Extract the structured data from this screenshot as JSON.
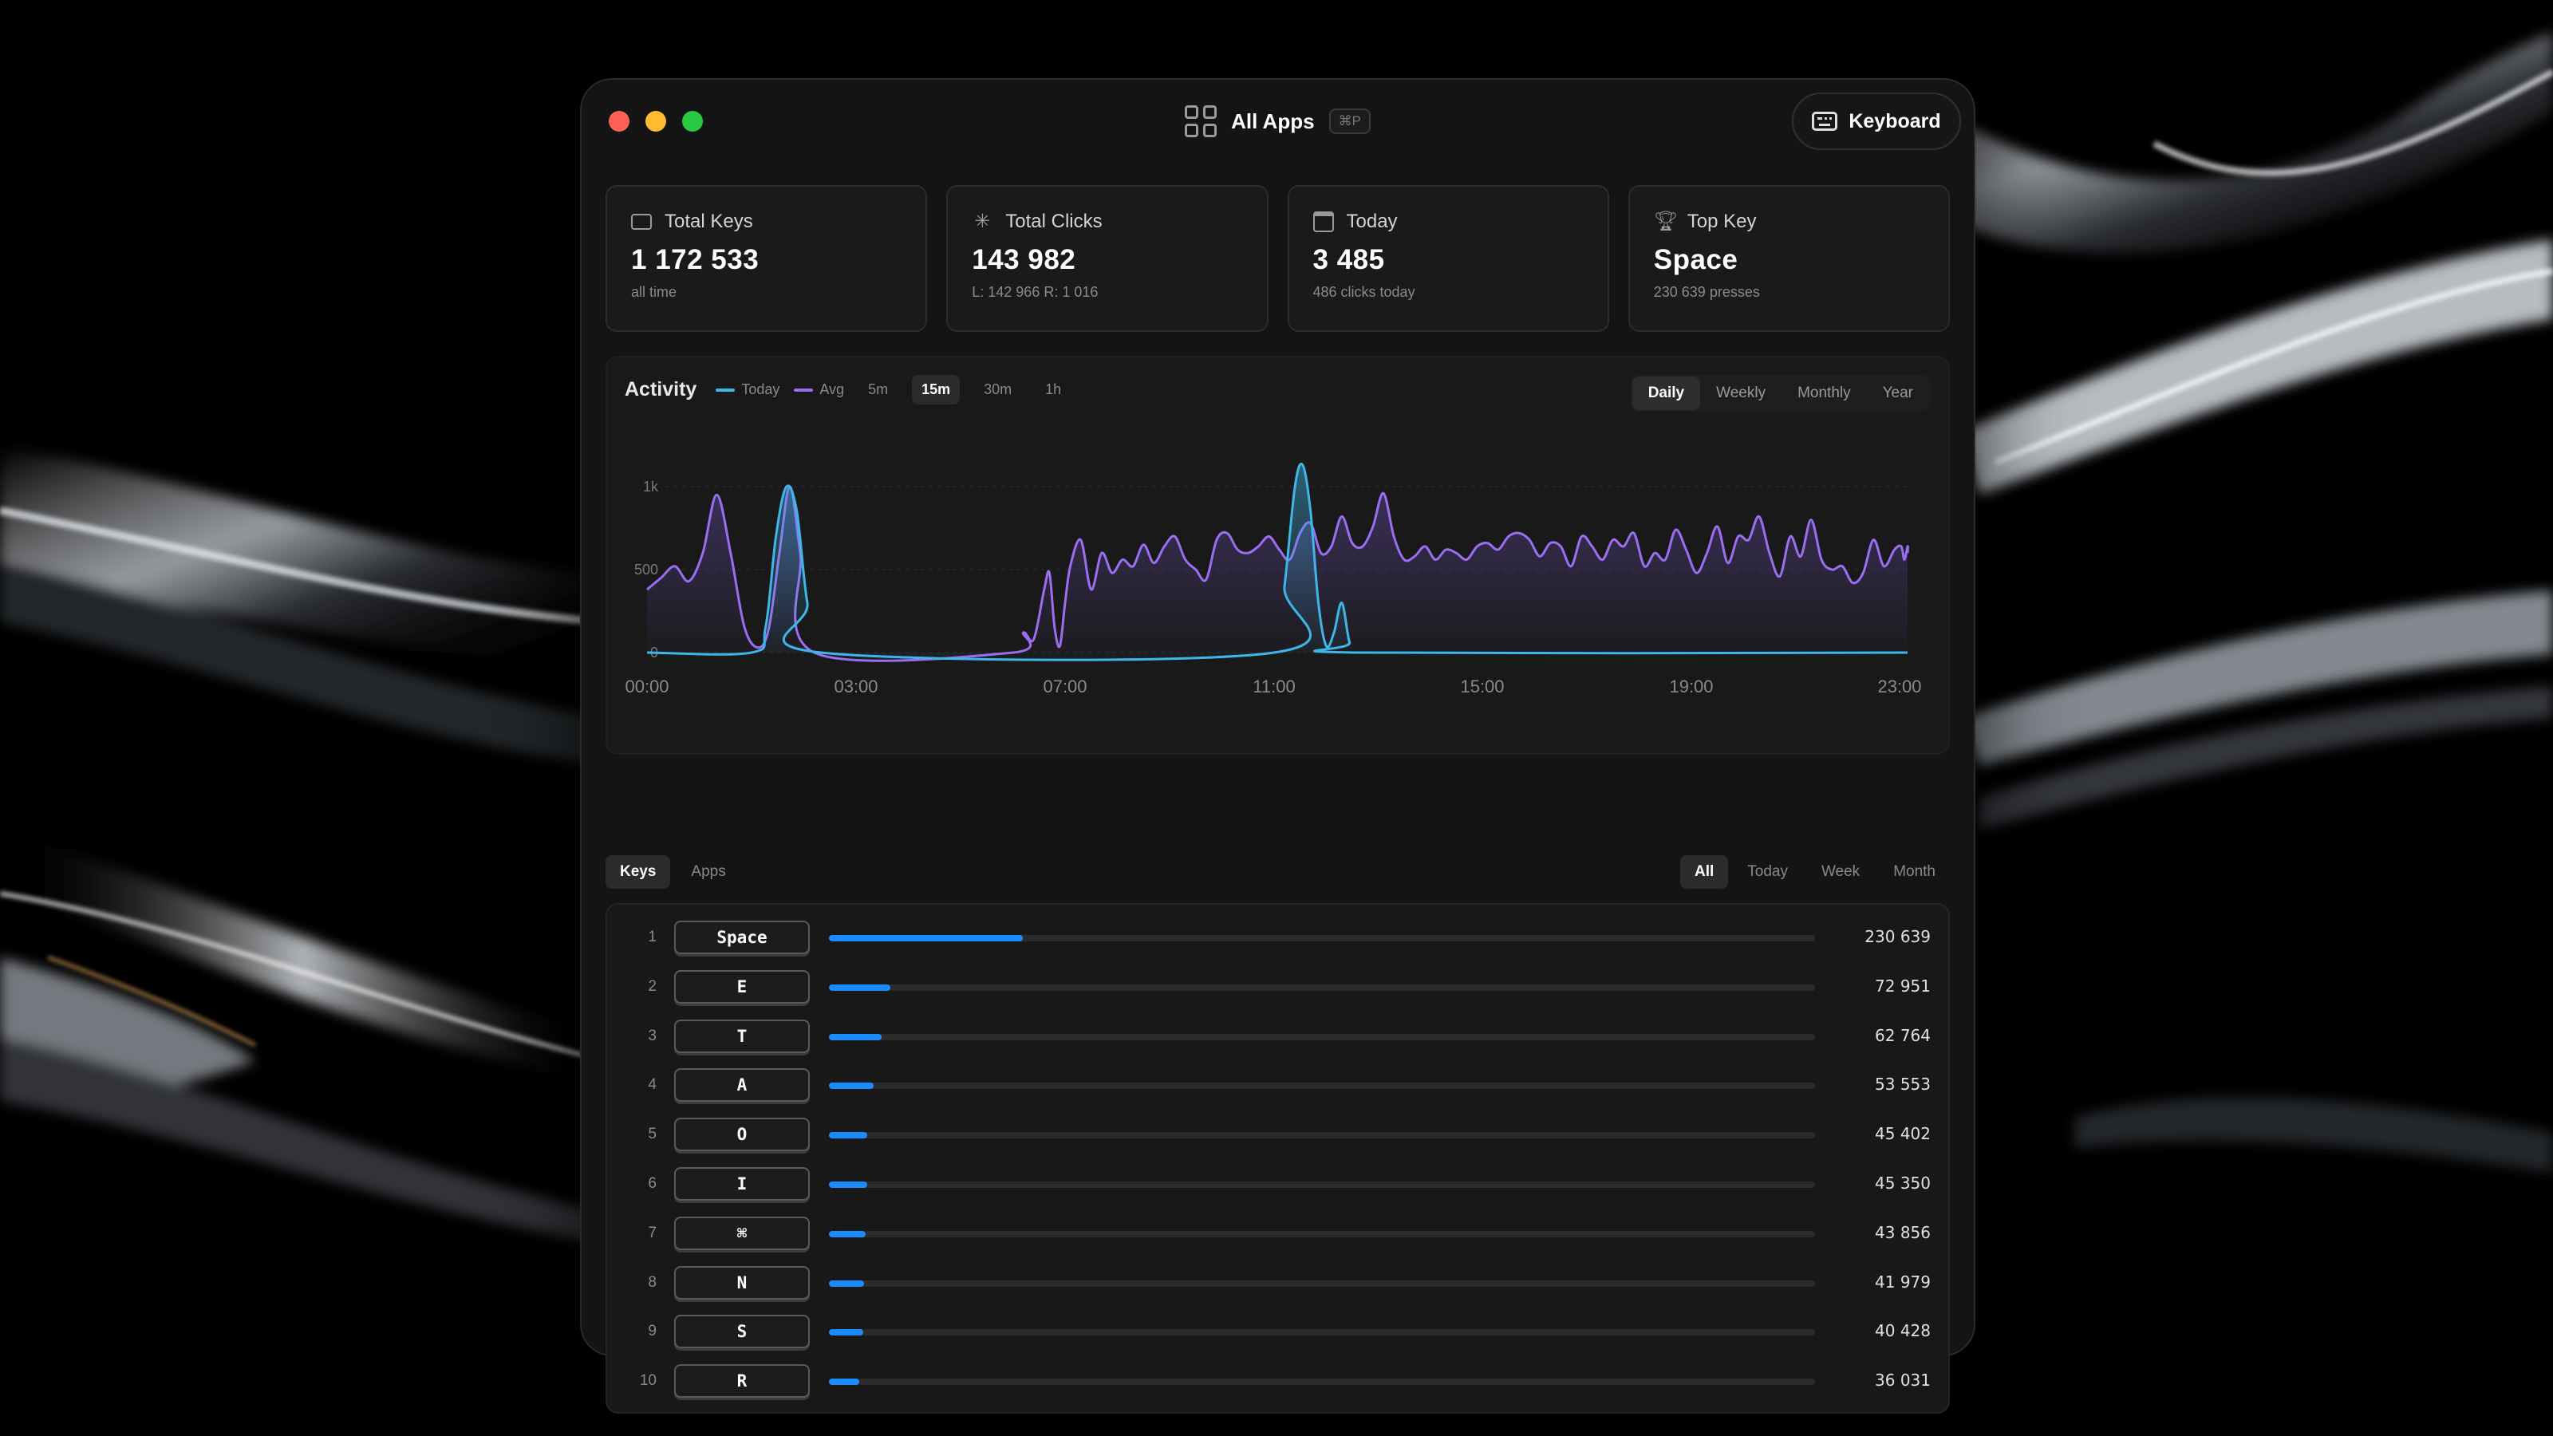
{
  "window": {
    "title": "All Apps",
    "shortcut": "⌘P",
    "keyboard_button": "Keyboard"
  },
  "stats": [
    {
      "icon": "keyboard-icon",
      "label": "Total Keys",
      "value": "1 172 533",
      "sub": "all time"
    },
    {
      "icon": "pointer-click-icon",
      "label": "Total Clicks",
      "value": "143 982",
      "sub": "L: 142 966 R: 1 016"
    },
    {
      "icon": "calendar-icon",
      "label": "Today",
      "value": "3 485",
      "sub": "486 clicks today"
    },
    {
      "icon": "trophy-icon",
      "label": "Top Key",
      "value": "Space",
      "sub": "230 639 presses"
    }
  ],
  "activity": {
    "title": "Activity",
    "legend": [
      {
        "label": "Today",
        "color": "#3fb6e8"
      },
      {
        "label": "Avg",
        "color": "#9b6df0"
      }
    ],
    "intervals": [
      "5m",
      "15m",
      "30m",
      "1h"
    ],
    "active_interval": "15m",
    "ranges": [
      "Daily",
      "Weekly",
      "Monthly",
      "Year"
    ],
    "active_range": "Daily"
  },
  "chart_data": {
    "type": "line",
    "x_ticks": [
      "00:00",
      "03:00",
      "07:00",
      "11:00",
      "15:00",
      "19:00",
      "23:00"
    ],
    "y_ticks": [
      "0",
      "500",
      "1k"
    ],
    "ylim": [
      0,
      1000
    ],
    "xlim": [
      0,
      24
    ],
    "series": [
      {
        "name": "Today",
        "color": "#3fb6e8",
        "x": [
          0,
          1.5,
          1.7,
          1.85,
          2.0,
          2.15,
          2.3,
          2.5,
          11.0,
          11.2,
          11.4,
          11.55,
          11.7,
          11.85,
          12.0,
          12.15,
          12.3,
          12.45,
          12.6,
          24
        ],
        "y": [
          0,
          0,
          150,
          700,
          1000,
          850,
          300,
          0,
          0,
          400,
          1000,
          1130,
          850,
          300,
          40,
          120,
          300,
          60,
          0,
          0
        ]
      },
      {
        "name": "Avg",
        "color": "#9b6df0",
        "x": [
          0,
          0.2,
          0.4,
          0.6,
          0.8,
          1.0,
          1.2,
          1.4,
          1.6,
          1.75,
          1.9,
          2.05,
          2.2,
          2.4,
          6.0,
          6.2,
          6.4,
          6.6,
          6.7,
          6.8,
          6.9,
          7.0,
          7.1,
          7.3,
          7.5,
          7.7,
          7.9,
          8.1,
          8.3,
          8.5,
          8.7,
          8.9,
          9.1,
          9.3,
          9.5,
          9.7,
          9.9,
          10.1,
          10.3,
          10.5,
          10.7,
          10.9,
          11.1,
          11.3,
          11.5,
          11.7,
          11.9,
          12.1,
          12.3,
          12.5,
          12.7,
          12.9,
          13.1,
          13.3,
          13.5,
          13.7,
          13.9,
          14.1,
          14.3,
          14.5,
          14.7,
          14.9,
          15.1,
          15.3,
          15.5,
          15.7,
          15.9,
          16.1,
          16.3,
          16.5,
          16.7,
          16.9,
          17.1,
          17.3,
          17.5,
          17.7,
          17.9,
          18.1,
          18.3,
          18.5,
          18.7,
          18.9,
          19.1,
          19.3,
          19.5,
          19.7,
          19.9,
          20.1,
          20.3,
          20.5,
          20.7,
          20.9,
          21.1,
          21.3,
          21.5,
          21.7,
          21.9,
          22.1,
          22.3,
          22.5,
          22.7,
          22.9,
          23.1,
          23.3,
          23.5,
          24
        ],
        "y": [
          380,
          450,
          520,
          430,
          600,
          950,
          600,
          150,
          30,
          150,
          600,
          1000,
          600,
          0,
          0,
          120,
          80,
          380,
          480,
          150,
          40,
          300,
          520,
          680,
          380,
          600,
          480,
          560,
          520,
          650,
          540,
          640,
          700,
          560,
          500,
          440,
          680,
          720,
          620,
          600,
          640,
          700,
          620,
          560,
          720,
          780,
          600,
          640,
          820,
          660,
          640,
          760,
          960,
          700,
          560,
          580,
          640,
          560,
          620,
          600,
          560,
          640,
          660,
          620,
          700,
          720,
          680,
          580,
          660,
          640,
          520,
          700,
          640,
          560,
          680,
          640,
          720,
          520,
          600,
          560,
          740,
          620,
          480,
          600,
          760,
          540,
          700,
          680,
          820,
          600,
          460,
          700,
          580,
          800,
          560,
          500,
          520,
          420,
          480,
          680,
          520,
          620,
          640,
          560,
          640,
          600
        ],
        "fill": true
      }
    ]
  },
  "list": {
    "tabs": [
      "Keys",
      "Apps"
    ],
    "active_tab": "Keys",
    "time_tabs": [
      "All",
      "Today",
      "Week",
      "Month"
    ],
    "active_time": "All",
    "max_value": 1172533,
    "rows": [
      {
        "rank": "1",
        "key": "Space",
        "count": "230 639",
        "value": 230639
      },
      {
        "rank": "2",
        "key": "E",
        "count": "72 951",
        "value": 72951
      },
      {
        "rank": "3",
        "key": "T",
        "count": "62 764",
        "value": 62764
      },
      {
        "rank": "4",
        "key": "A",
        "count": "53 553",
        "value": 53553
      },
      {
        "rank": "5",
        "key": "O",
        "count": "45 402",
        "value": 45402
      },
      {
        "rank": "6",
        "key": "I",
        "count": "45 350",
        "value": 45350
      },
      {
        "rank": "7",
        "key": "⌘",
        "count": "43 856",
        "value": 43856
      },
      {
        "rank": "8",
        "key": "N",
        "count": "41 979",
        "value": 41979
      },
      {
        "rank": "9",
        "key": "S",
        "count": "40 428",
        "value": 40428
      },
      {
        "rank": "10",
        "key": "R",
        "count": "36 031",
        "value": 36031
      }
    ]
  }
}
